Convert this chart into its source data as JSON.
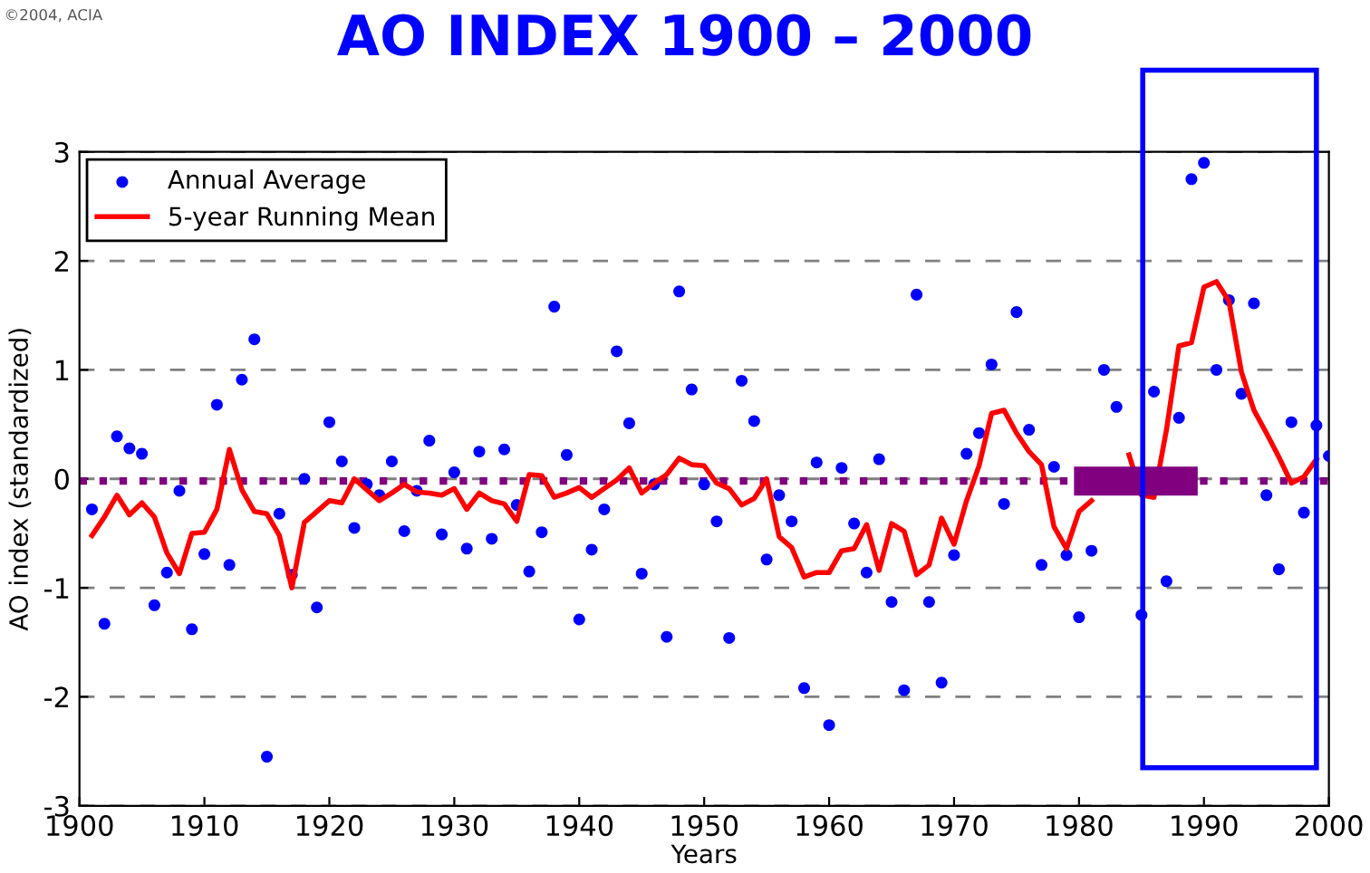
{
  "chart_data": {
    "type": "scatter",
    "title": "AO INDEX 1900 – 2000",
    "xlabel": "Years",
    "ylabel": "AO index (standardized)",
    "annotations": [
      "©2004, ACIA"
    ],
    "xlim": [
      1900,
      2000
    ],
    "xticks": [
      1900,
      1910,
      1920,
      1930,
      1940,
      1950,
      1960,
      1970,
      1980,
      1990,
      2000
    ],
    "ylim": [
      -3,
      3
    ],
    "yticks": [
      -3,
      -2,
      -1,
      0,
      1,
      2,
      3
    ],
    "grid": "y",
    "legend": "top left",
    "series": [
      {
        "name": "Annual Average",
        "marker": "circle",
        "color": "#0000ff",
        "x": [
          1901,
          1902,
          1903,
          1904,
          1905,
          1906,
          1907,
          1908,
          1909,
          1910,
          1911,
          1912,
          1913,
          1914,
          1915,
          1916,
          1917,
          1918,
          1919,
          1920,
          1921,
          1922,
          1923,
          1924,
          1925,
          1926,
          1927,
          1928,
          1929,
          1930,
          1931,
          1932,
          1933,
          1934,
          1935,
          1936,
          1937,
          1938,
          1939,
          1940,
          1941,
          1942,
          1943,
          1944,
          1945,
          1946,
          1947,
          1948,
          1949,
          1950,
          1951,
          1952,
          1953,
          1954,
          1955,
          1956,
          1957,
          1958,
          1959,
          1960,
          1961,
          1962,
          1963,
          1964,
          1965,
          1966,
          1967,
          1968,
          1969,
          1970,
          1971,
          1972,
          1973,
          1974,
          1975,
          1976,
          1977,
          1978,
          1979,
          1980,
          1981,
          1982,
          1983,
          1984,
          1985,
          1986,
          1987,
          1988,
          1989,
          1990,
          1991,
          1992,
          1993,
          1994,
          1995,
          1996,
          1997,
          1998,
          1999,
          2000
        ],
        "values": [
          -0.28,
          -1.33,
          0.39,
          0.28,
          0.23,
          -1.16,
          -0.86,
          -0.11,
          -1.38,
          -0.69,
          0.68,
          -0.79,
          0.91,
          1.28,
          -2.55,
          -0.32,
          -0.88,
          0.0,
          -1.18,
          0.52,
          0.16,
          -0.45,
          -0.05,
          -0.15,
          0.16,
          -0.48,
          -0.11,
          0.35,
          -0.51,
          0.06,
          -0.64,
          0.25,
          -0.55,
          0.27,
          -0.24,
          -0.85,
          -0.49,
          1.58,
          0.22,
          -1.29,
          -0.65,
          -0.28,
          1.17,
          0.51,
          -0.87,
          -0.05,
          -1.45,
          1.72,
          0.82,
          -0.05,
          -0.39,
          -1.46,
          0.9,
          0.53,
          -0.74,
          -0.15,
          -0.39,
          -1.92,
          0.15,
          -2.26,
          0.1,
          -0.41,
          -0.86,
          0.18,
          -1.13,
          -1.94,
          1.69,
          -1.13,
          -1.87,
          -0.7,
          0.23,
          0.42,
          1.05,
          -0.23,
          1.53,
          0.45,
          -0.79,
          0.11,
          -0.7,
          -1.27,
          -0.66,
          1.0,
          0.66,
          null,
          -1.25,
          0.8,
          -0.94,
          0.56,
          2.75,
          2.9,
          1.0,
          1.64,
          0.78,
          1.61,
          -0.15,
          -0.83,
          0.52,
          -0.31,
          0.49,
          0.21
        ]
      },
      {
        "name": "5-year Running Mean",
        "type": "line",
        "marker": "none",
        "line_style": "solid",
        "color": "#ff0000",
        "x": [
          1901,
          1902,
          1903,
          1904,
          1905,
          1906,
          1907,
          1908,
          1909,
          1910,
          1911,
          1912,
          1913,
          1914,
          1915,
          1916,
          1917,
          1918,
          1919,
          1920,
          1921,
          1922,
          1923,
          1924,
          1925,
          1926,
          1927,
          1928,
          1929,
          1930,
          1931,
          1932,
          1933,
          1934,
          1935,
          1936,
          1937,
          1938,
          1939,
          1940,
          1941,
          1942,
          1943,
          1944,
          1945,
          1946,
          1947,
          1948,
          1949,
          1950,
          1951,
          1952,
          1953,
          1954,
          1955,
          1956,
          1957,
          1958,
          1959,
          1960,
          1961,
          1962,
          1963,
          1964,
          1965,
          1966,
          1967,
          1968,
          1969,
          1970,
          1971,
          1972,
          1973,
          1974,
          1975,
          1976,
          1977,
          1978,
          1979,
          1980,
          1981,
          1982,
          1983,
          1984,
          1985,
          1986,
          1987,
          1988,
          1989,
          1990,
          1991,
          1992,
          1993,
          1994,
          1995,
          1996,
          1997,
          1998,
          1999
        ],
        "values": [
          -0.52,
          -0.35,
          -0.15,
          -0.33,
          -0.22,
          -0.35,
          -0.68,
          -0.87,
          -0.5,
          -0.49,
          -0.28,
          0.27,
          -0.1,
          -0.3,
          -0.32,
          -0.52,
          -1.0,
          -0.4,
          -0.3,
          -0.2,
          -0.22,
          0.0,
          -0.1,
          -0.2,
          -0.13,
          -0.05,
          -0.12,
          -0.13,
          -0.15,
          -0.09,
          -0.28,
          -0.13,
          -0.2,
          -0.23,
          -0.39,
          0.04,
          0.03,
          -0.17,
          -0.13,
          -0.08,
          -0.17,
          -0.09,
          -0.01,
          0.1,
          -0.13,
          -0.04,
          0.04,
          0.19,
          0.13,
          0.12,
          -0.04,
          -0.09,
          -0.24,
          -0.18,
          0.0,
          -0.53,
          -0.63,
          -0.9,
          -0.86,
          -0.86,
          -0.66,
          -0.64,
          -0.42,
          -0.84,
          -0.41,
          -0.48,
          -0.88,
          -0.79,
          -0.36,
          -0.6,
          -0.2,
          0.12,
          0.6,
          0.63,
          0.42,
          0.25,
          0.13,
          -0.44,
          -0.64,
          -0.3,
          -0.2,
          null,
          null,
          0.22,
          -0.15,
          -0.17,
          0.45,
          1.22,
          1.25,
          1.76,
          1.81,
          1.63,
          0.98,
          0.63,
          0.42,
          0.2,
          -0.04,
          0.02,
          0.18
        ]
      }
    ],
    "ref_lines": [
      {
        "axis": "y",
        "value": -0.02,
        "color": "#800080",
        "line_style": "dotted"
      }
    ]
  }
}
